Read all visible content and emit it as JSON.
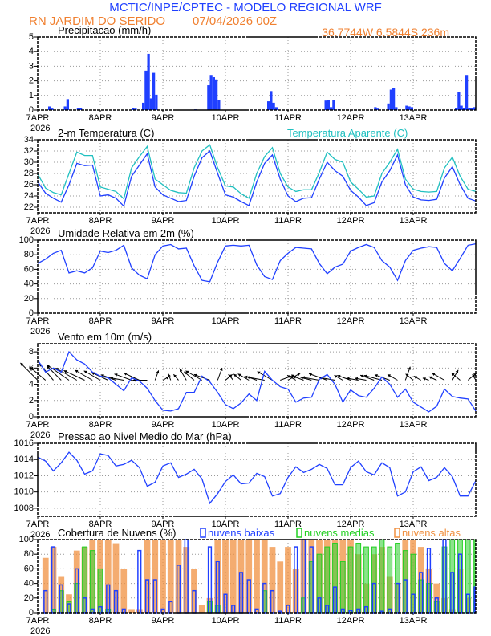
{
  "header": {
    "title": "MCTIC/INPE/CPTEC - MODELO REGIONAL WRF",
    "location": "RN JARDIM DO SERIDO",
    "run": "07/04/2026 00Z",
    "coords": "36.7744W 6.5844S 236m"
  },
  "colors": {
    "title": "#2040ff",
    "subtitle": "#f08030",
    "temp": "#2040ff",
    "apparent": "#20c0c0",
    "line": "#2040ff",
    "low": "#2040ff",
    "mid": "#20d020",
    "high": "#f09040"
  },
  "x_axis": {
    "labels": [
      "7APR",
      "8APR",
      "9APR",
      "10APR",
      "11APR",
      "12APR",
      "13APR"
    ],
    "year": "2026",
    "hours_total": 168
  },
  "chart_data": [
    {
      "type": "bar",
      "title": "Precipitacao (mm/h)",
      "ylim": [
        0,
        5
      ],
      "yticks": [
        0,
        1,
        2,
        3,
        4,
        5
      ],
      "grid": true,
      "x_unit": "hours since 07/04/2026 00Z",
      "points": [
        [
          4,
          0.25
        ],
        [
          5,
          0.1
        ],
        [
          10,
          0.25
        ],
        [
          11,
          0.75
        ],
        [
          15,
          0.12
        ],
        [
          16,
          0.12
        ],
        [
          36,
          0.15
        ],
        [
          37,
          0.1
        ],
        [
          40,
          0.5
        ],
        [
          41,
          2.7
        ],
        [
          42,
          3.85
        ],
        [
          43,
          0.8
        ],
        [
          44,
          2.55
        ],
        [
          45,
          1.05
        ],
        [
          60,
          0.05
        ],
        [
          65,
          1.7
        ],
        [
          66,
          2.35
        ],
        [
          67,
          2.25
        ],
        [
          68,
          2.1
        ],
        [
          69,
          0.7
        ],
        [
          88,
          0.6
        ],
        [
          89,
          1.3
        ],
        [
          90,
          0.5
        ],
        [
          91,
          0.2
        ],
        [
          110,
          0.65
        ],
        [
          111,
          0.7
        ],
        [
          112,
          0.2
        ],
        [
          113,
          0.7
        ],
        [
          115,
          0.05
        ],
        [
          129,
          0.2
        ],
        [
          130,
          0.1
        ],
        [
          134,
          0.45
        ],
        [
          135,
          1.4
        ],
        [
          136,
          1.5
        ],
        [
          137,
          0.2
        ],
        [
          141,
          0.3
        ],
        [
          142,
          0.25
        ],
        [
          143,
          0.2
        ],
        [
          160,
          0.15
        ],
        [
          161,
          1.25
        ],
        [
          162,
          0.3
        ],
        [
          163,
          0.15
        ],
        [
          164,
          2.35
        ],
        [
          165,
          0.15
        ],
        [
          166,
          0.15
        ],
        [
          167,
          0.2
        ]
      ]
    },
    {
      "type": "line",
      "title": "2-m Temperatura (C)",
      "ylim": [
        21,
        34
      ],
      "yticks": [
        22,
        24,
        26,
        28,
        30,
        32,
        34
      ],
      "grid": true,
      "x_step_hours": 3,
      "series": [
        {
          "name": "2-m Temperatura (C)",
          "values": [
            26.5,
            24.5,
            23.6,
            22.9,
            26,
            29.8,
            29.4,
            29.5,
            24.0,
            24.2,
            23.6,
            22.2,
            27.5,
            29.5,
            31.5,
            25.6,
            24.2,
            23.6,
            23.0,
            23.2,
            27.5,
            30.8,
            32.0,
            28.0,
            24.2,
            23.8,
            23.0,
            22.3,
            26.5,
            29.8,
            31.3,
            27.0,
            24.0,
            23.0,
            23.6,
            23.7,
            27.0,
            30.0,
            28.5,
            27.5,
            25.0,
            23.8,
            22.3,
            22.8,
            26.5,
            28.5,
            31.3,
            26.0,
            23.8,
            23.3,
            23.2,
            23.4,
            27.2,
            29.2,
            26.0,
            23.6,
            23.1
          ]
        },
        {
          "name": "Temperatura Aparente (C)",
          "values": [
            27.9,
            25.4,
            24.6,
            24.2,
            28.0,
            31.8,
            31.2,
            31.2,
            25.6,
            25.2,
            24.8,
            23.5,
            29.0,
            31.0,
            32.8,
            27.0,
            26.0,
            25.0,
            24.6,
            24.5,
            29.0,
            32.0,
            33.1,
            29.0,
            25.8,
            25.6,
            24.4,
            23.6,
            28.0,
            31.0,
            32.6,
            28.0,
            25.6,
            24.8,
            25.1,
            25.1,
            28.2,
            31.8,
            30.5,
            30.0,
            26.5,
            25.2,
            23.8,
            24.0,
            28.0,
            30.0,
            32.3,
            27.0,
            25.2,
            24.8,
            24.7,
            24.8,
            29.0,
            30.9,
            27.5,
            25.2,
            24.8
          ]
        }
      ]
    },
    {
      "type": "line",
      "title": "Umidade Relativa em 2m (%)",
      "ylim": [
        0,
        100
      ],
      "yticks": [
        0,
        20,
        40,
        60,
        80,
        100
      ],
      "grid": true,
      "x_step_hours": 3,
      "series": [
        {
          "values": [
            68,
            74,
            82,
            86,
            55,
            58,
            55,
            62,
            85,
            83,
            86,
            93,
            62,
            52,
            47,
            80,
            92,
            94,
            88,
            89,
            65,
            45,
            43,
            70,
            92,
            93,
            92,
            93,
            66,
            50,
            46,
            72,
            82,
            90,
            89,
            88,
            68,
            54,
            63,
            67,
            85,
            90,
            94,
            90,
            72,
            63,
            45,
            72,
            86,
            89,
            91,
            90,
            68,
            58,
            75,
            93,
            95
          ]
        }
      ]
    },
    {
      "type": "line",
      "title": "Vento em 10m (m/s)",
      "ylim": [
        0,
        9
      ],
      "yticks": [
        0,
        2,
        4,
        6,
        8
      ],
      "grid": true,
      "x_step_hours": 3,
      "series": [
        {
          "values": [
            7.0,
            5.5,
            6.0,
            5.5,
            8.0,
            7.0,
            6.5,
            5.5,
            5.0,
            4.8,
            4.0,
            3.2,
            4.8,
            4.4,
            3.5,
            2.0,
            0.8,
            0.7,
            1.0,
            3.0,
            3.0,
            5.0,
            4.3,
            3.0,
            1.5,
            1.0,
            1.7,
            2.8,
            2.0,
            5.6,
            4.5,
            3.7,
            3.4,
            1.8,
            2.3,
            2.4,
            4.6,
            5.2,
            4.0,
            1.8,
            3.3,
            2.6,
            2.4,
            3.5,
            4.9,
            4.0,
            2.4,
            3.4,
            1.8,
            1.2,
            0.6,
            1.3,
            3.4,
            2.5,
            2.3,
            2.2,
            0.7
          ]
        }
      ],
      "wind_vectors": {
        "baseline": 4.5,
        "direction_deg": [
          135,
          130,
          140,
          135,
          125,
          120,
          115,
          120,
          120,
          115,
          110,
          100,
          110,
          115,
          90,
          200,
          240,
          160,
          140,
          150,
          130,
          120,
          110,
          200,
          230,
          140,
          130,
          120,
          110,
          100,
          120,
          250,
          240,
          120,
          110,
          105,
          100,
          110,
          100,
          120,
          110,
          100,
          100,
          110,
          105,
          110,
          120,
          200,
          130,
          120,
          110,
          115,
          120,
          210,
          130,
          230,
          150
        ]
      }
    },
    {
      "type": "line",
      "title": "Pressao ao Nivel Medio do Mar (hPa)",
      "ylim": [
        1007,
        1016
      ],
      "yticks": [
        1008,
        1010,
        1012,
        1014,
        1016
      ],
      "grid": true,
      "x_step_hours": 3,
      "series": [
        {
          "values": [
            1014.3,
            1013.8,
            1012.6,
            1013.6,
            1014.9,
            1013.9,
            1012.2,
            1012.6,
            1014.7,
            1014.5,
            1013.2,
            1013.4,
            1013.9,
            1013.0,
            1010.7,
            1011.2,
            1013.2,
            1013.6,
            1011.8,
            1012.2,
            1012.8,
            1011.6,
            1008.6,
            1009.8,
            1011.3,
            1012.1,
            1011.0,
            1011.1,
            1012.3,
            1011.9,
            1009.5,
            1009.8,
            1011.8,
            1013.1,
            1012.4,
            1012.8,
            1013.4,
            1012.9,
            1010.9,
            1010.9,
            1013.0,
            1013.8,
            1012.5,
            1012.1,
            1013.6,
            1013.0,
            1009.5,
            1010.0,
            1012.5,
            1013.1,
            1011.4,
            1011.8,
            1013.0,
            1011.9,
            1009.5,
            1009.5,
            1011.4
          ]
        }
      ]
    },
    {
      "type": "bar",
      "title": "Cobertura de Nuvens (%)",
      "ylim": [
        0,
        100
      ],
      "yticks": [
        0,
        20,
        40,
        60,
        80,
        100
      ],
      "grid": true,
      "x_step_hours": 3,
      "legend": "top",
      "series": [
        {
          "name": "nuvens altas",
          "values": [
            0,
            75,
            90,
            50,
            25,
            85,
            90,
            100,
            100,
            100,
            95,
            60,
            5,
            5,
            100,
            100,
            100,
            100,
            100,
            90,
            60,
            10,
            20,
            100,
            100,
            100,
            100,
            100,
            100,
            100,
            90,
            70,
            90,
            60,
            100,
            100,
            100,
            100,
            100,
            100,
            100,
            80,
            40,
            80,
            90,
            50,
            40,
            100,
            100,
            90,
            60,
            40,
            20,
            5,
            60,
            20,
            0
          ]
        },
        {
          "name": "nuvens medias",
          "values": [
            0,
            0,
            5,
            30,
            15,
            40,
            90,
            85,
            60,
            5,
            0,
            0,
            0,
            0,
            0,
            0,
            0,
            0,
            0,
            0,
            0,
            0,
            15,
            10,
            0,
            0,
            0,
            0,
            0,
            30,
            0,
            0,
            0,
            0,
            20,
            70,
            80,
            90,
            95,
            70,
            90,
            95,
            90,
            90,
            100,
            90,
            95,
            85,
            80,
            45,
            40,
            15,
            90,
            100,
            100,
            100,
            100
          ]
        },
        {
          "name": "nuvens baixas",
          "values": [
            0,
            30,
            90,
            38,
            12,
            60,
            20,
            5,
            8,
            38,
            30,
            5,
            0,
            85,
            45,
            45,
            5,
            15,
            65,
            100,
            30,
            0,
            90,
            70,
            25,
            10,
            55,
            45,
            5,
            40,
            30,
            2,
            10,
            90,
            100,
            90,
            20,
            10,
            35,
            5,
            3,
            5,
            8,
            40,
            2,
            5,
            40,
            45,
            25,
            55,
            88,
            20,
            100,
            55,
            80,
            25,
            35
          ]
        }
      ]
    }
  ]
}
